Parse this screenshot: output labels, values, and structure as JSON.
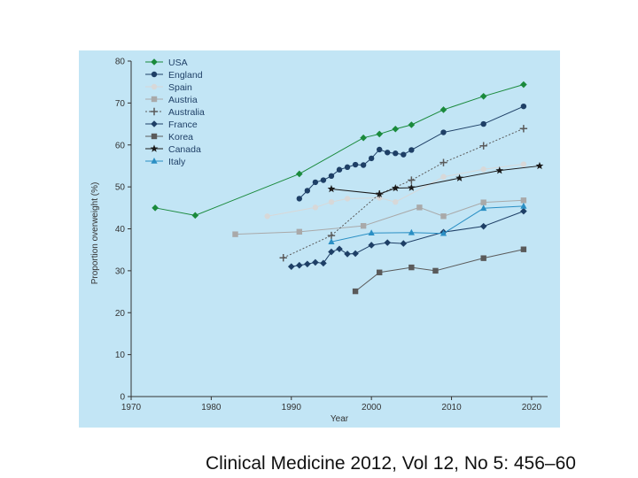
{
  "chart_data": {
    "type": "line",
    "title": "",
    "xlabel": "Year",
    "ylabel": "Proportion overweight (%)",
    "xlim": [
      1970,
      2022
    ],
    "ylim": [
      0,
      80
    ],
    "xticks": [
      1970,
      1980,
      1990,
      2000,
      2010,
      2020
    ],
    "yticks": [
      0,
      10,
      20,
      30,
      40,
      50,
      60,
      70,
      80
    ],
    "grid": false,
    "legend_position": "top-left",
    "series": [
      {
        "name": "USA",
        "color": "#1a8a3c",
        "marker": "diamond",
        "dash": "",
        "x": [
          1973,
          1978,
          1991,
          1999,
          2001,
          2003,
          2005,
          2009,
          2014,
          2019
        ],
        "y": [
          45,
          43.2,
          53.1,
          61.7,
          62.6,
          63.8,
          64.8,
          68.4,
          71.6,
          74.4
        ]
      },
      {
        "name": "England",
        "color": "#1e3f66",
        "marker": "circle",
        "dash": "",
        "x": [
          1991,
          1992,
          1993,
          1994,
          1995,
          1996,
          1997,
          1998,
          1999,
          2000,
          2001,
          2002,
          2003,
          2004,
          2005,
          2009,
          2014,
          2019
        ],
        "y": [
          47.2,
          49.1,
          51.1,
          51.6,
          52.6,
          54.1,
          54.7,
          55.3,
          55.2,
          56.8,
          58.9,
          58.2,
          58.0,
          57.7,
          58.8,
          63.0,
          65.0,
          69.2
        ]
      },
      {
        "name": "Spain",
        "color": "#d8d8d8",
        "marker": "circle",
        "dash": "",
        "x": [
          1987,
          1993,
          1995,
          1997,
          2001,
          2003,
          2009,
          2014,
          2019
        ],
        "y": [
          43.0,
          45.1,
          46.4,
          47.2,
          47.4,
          46.4,
          52.4,
          54.2,
          55.4
        ]
      },
      {
        "name": "Austria",
        "color": "#a9a9a9",
        "marker": "square",
        "dash": "",
        "x": [
          1983,
          1991,
          1999,
          2006,
          2009,
          2014,
          2019
        ],
        "y": [
          38.7,
          39.3,
          40.7,
          45.1,
          43.0,
          46.3,
          46.8
        ]
      },
      {
        "name": "Australia",
        "color": "#5a5a5a",
        "marker": "plus",
        "dash": "2 2",
        "x": [
          1989,
          1995,
          2001,
          2005,
          2009,
          2014,
          2019
        ],
        "y": [
          33.1,
          38.4,
          48.3,
          51.6,
          55.8,
          59.8,
          63.9
        ]
      },
      {
        "name": "France",
        "color": "#1e3f66",
        "marker": "diamond",
        "dash": "",
        "x": [
          1990,
          1991,
          1992,
          1993,
          1994,
          1995,
          1996,
          1997,
          1998,
          2000,
          2002,
          2004,
          2009,
          2014,
          2019
        ],
        "y": [
          31.0,
          31.3,
          31.6,
          32.0,
          31.8,
          34.5,
          35.2,
          34.0,
          34.1,
          36.1,
          36.7,
          36.5,
          39.2,
          40.6,
          44.2
        ]
      },
      {
        "name": "Korea",
        "color": "#5a5a5a",
        "marker": "square",
        "dash": "",
        "x": [
          1998,
          2001,
          2005,
          2008,
          2014,
          2019
        ],
        "y": [
          25.1,
          29.6,
          30.8,
          30.0,
          33.0,
          35.1
        ]
      },
      {
        "name": "Canada",
        "color": "#1a1a1a",
        "marker": "star",
        "dash": "",
        "x": [
          1995,
          2001,
          2003,
          2005,
          2011,
          2016,
          2021
        ],
        "y": [
          49.5,
          48.3,
          49.7,
          49.8,
          52.1,
          53.9,
          55.0
        ]
      },
      {
        "name": "Italy",
        "color": "#2a8fc4",
        "marker": "triangle",
        "dash": "",
        "x": [
          1995,
          2000,
          2005,
          2009,
          2014,
          2019
        ],
        "y": [
          36.9,
          39.0,
          39.1,
          38.9,
          44.9,
          45.4
        ]
      }
    ]
  },
  "citation": "Clinical Medicine 2012, Vol 12, No 5: 456–60"
}
